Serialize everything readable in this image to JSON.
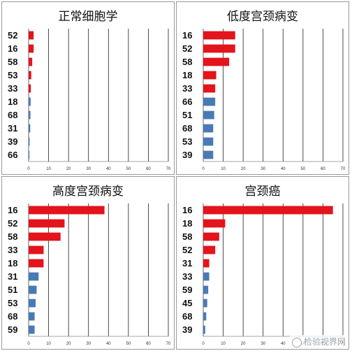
{
  "chart_data": [
    {
      "type": "bar",
      "orientation": "horizontal",
      "title": "正常细胞学",
      "categories": [
        "52",
        "16",
        "58",
        "53",
        "33",
        "18",
        "68",
        "31",
        "39",
        "66"
      ],
      "values": [
        2.5,
        2.5,
        1.8,
        1.3,
        1.1,
        1.0,
        0.9,
        0.8,
        0.5,
        0.4
      ],
      "bar_colors": [
        "#e3141b",
        "#e3141b",
        "#e3141b",
        "#e3141b",
        "#e3141b",
        "#4a7ab5",
        "#4a7ab5",
        "#4a7ab5",
        "#4a7ab5",
        "#4a7ab5"
      ],
      "xlim": [
        0,
        70
      ],
      "xticks": [
        "0",
        "10",
        "20",
        "30",
        "40",
        "50",
        "60",
        "70"
      ],
      "grid": true
    },
    {
      "type": "bar",
      "orientation": "horizontal",
      "title": "低度宫颈病变",
      "categories": [
        "16",
        "52",
        "58",
        "18",
        "33",
        "66",
        "51",
        "68",
        "53",
        "39"
      ],
      "values": [
        16,
        16,
        13,
        6.5,
        6,
        6,
        5.5,
        5,
        5,
        5
      ],
      "bar_colors": [
        "#e3141b",
        "#e3141b",
        "#e3141b",
        "#e3141b",
        "#e3141b",
        "#4a7ab5",
        "#4a7ab5",
        "#4a7ab5",
        "#4a7ab5",
        "#4a7ab5"
      ],
      "xlim": [
        0,
        70
      ],
      "xticks": [
        "0",
        "10",
        "20",
        "30",
        "40",
        "50",
        "60",
        "70"
      ],
      "grid": true
    },
    {
      "type": "bar",
      "orientation": "horizontal",
      "title": "高度宫颈病变",
      "categories": [
        "16",
        "52",
        "58",
        "33",
        "18",
        "31",
        "51",
        "53",
        "68",
        "59"
      ],
      "values": [
        38,
        18,
        16,
        7.5,
        7.5,
        5,
        4,
        3.5,
        3,
        3
      ],
      "bar_colors": [
        "#e3141b",
        "#e3141b",
        "#e3141b",
        "#e3141b",
        "#e3141b",
        "#4a7ab5",
        "#4a7ab5",
        "#4a7ab5",
        "#4a7ab5",
        "#4a7ab5"
      ],
      "xlim": [
        0,
        70
      ],
      "xticks": [
        "0",
        "10",
        "20",
        "30",
        "40",
        "50",
        "60",
        "70"
      ],
      "grid": true
    },
    {
      "type": "bar",
      "orientation": "horizontal",
      "title": "宫颈癌",
      "categories": [
        "16",
        "18",
        "58",
        "52",
        "31",
        "33",
        "59",
        "45",
        "68",
        "39"
      ],
      "values": [
        65,
        11,
        8,
        6,
        3,
        3,
        2.5,
        2,
        1.5,
        1
      ],
      "bar_colors": [
        "#e3141b",
        "#e3141b",
        "#e3141b",
        "#e3141b",
        "#e3141b",
        "#4a7ab5",
        "#4a7ab5",
        "#4a7ab5",
        "#4a7ab5",
        "#4a7ab5"
      ],
      "xlim": [
        0,
        70
      ],
      "xticks": [
        "0",
        "10",
        "20",
        "30",
        "40",
        "50",
        "60",
        "70"
      ],
      "grid": true
    }
  ],
  "watermark": {
    "text": "检验视界网",
    "icon": "wechat-icon"
  }
}
